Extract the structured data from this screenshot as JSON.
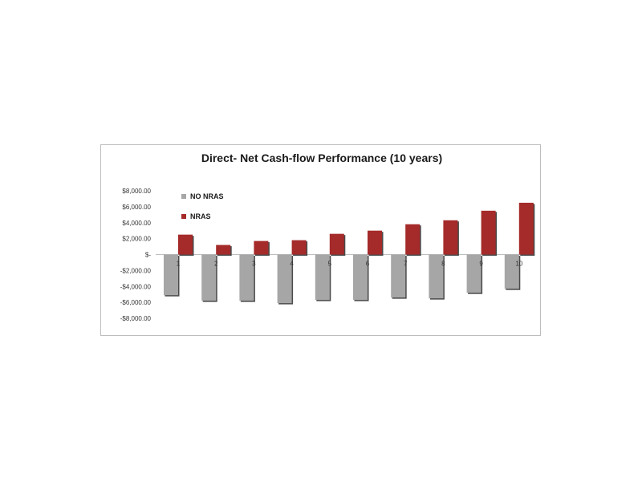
{
  "chart_data": {
    "type": "bar",
    "title": "Direct- Net Cash-flow Performance (10 years)",
    "xlabel": "",
    "ylabel": "",
    "categories": [
      "1",
      "2",
      "3",
      "4",
      "5",
      "6",
      "7",
      "8",
      "9",
      "10"
    ],
    "series": [
      {
        "name": "NO NRAS",
        "color": "#a6a6a6",
        "values": [
          -5100,
          -5800,
          -5800,
          -6100,
          -5700,
          -5700,
          -5400,
          -5500,
          -4800,
          -4300
        ]
      },
      {
        "name": "NRAS",
        "color": "#a52a2a",
        "values": [
          2500,
          1200,
          1700,
          1800,
          2600,
          3000,
          3800,
          4300,
          5500,
          6500
        ]
      }
    ],
    "ylim": [
      -8000,
      8000
    ],
    "yticks": [
      8000,
      6000,
      4000,
      2000,
      0,
      -2000,
      -4000,
      -6000,
      -8000
    ],
    "ytick_labels": [
      "$8,000.00",
      "$6,000.00",
      "$4,000.00",
      "$2,000.00",
      "$-",
      "-$2,000.00",
      "-$4,000.00",
      "-$6,000.00",
      "-$8,000.00"
    ],
    "grid": false,
    "legend_position": "top-left"
  }
}
